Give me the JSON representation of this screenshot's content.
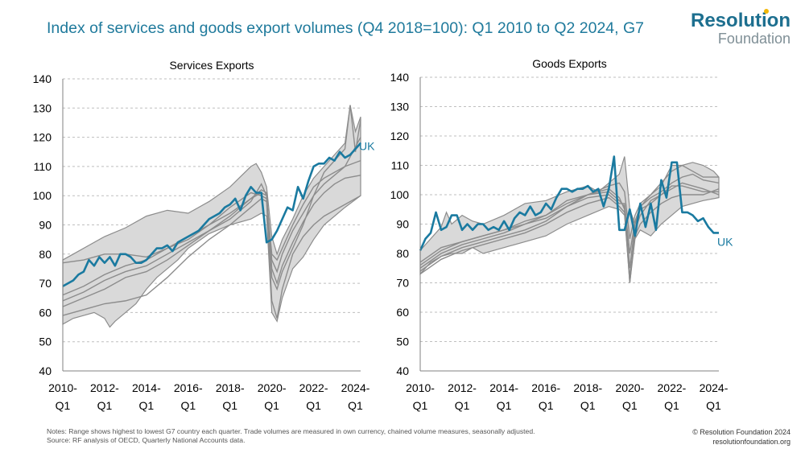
{
  "title": "Index of services and goods export volumes (Q4 2018=100): Q1 2010 to Q2 2024, G7",
  "logo": {
    "line1": "Resolution",
    "line2": "Foundation"
  },
  "notes": {
    "line1": "Notes: Range shows highest to lowest G7 country each quarter. Trade volumes are measured in own currency, chained volume measures, seasonally adjusted.",
    "line2": "Source: RF analysis of OECD, Quarterly National Accounts data."
  },
  "credit": {
    "line1": "© Resolution Foundation 2024",
    "line2": "resolutionfoundation.org"
  },
  "colors": {
    "uk": "#1a7aa0",
    "range": "#d9d9d9",
    "range_edge": "#8c8c8c",
    "country": "#8c8c8c",
    "grid": "#bfbfbf"
  },
  "chart_data": [
    {
      "type": "area",
      "title": "Services Exports",
      "ylim": [
        40,
        140
      ],
      "yticks": [
        40,
        50,
        60,
        70,
        80,
        90,
        100,
        110,
        120,
        130,
        140
      ],
      "x_tick_labels": [
        [
          "2010-",
          "Q1"
        ],
        [
          "2012-",
          "Q1"
        ],
        [
          "2014-",
          "Q1"
        ],
        [
          "2016-",
          "Q1"
        ],
        [
          "2018-",
          "Q1"
        ],
        [
          "2020-",
          "Q1"
        ],
        [
          "2022-",
          "Q1"
        ],
        [
          "2024-",
          "Q1"
        ]
      ],
      "x_tick_indices": [
        0,
        8,
        16,
        24,
        32,
        40,
        48,
        56
      ],
      "n_quarters": 58,
      "series_label": "UK",
      "uk_label_y": 117,
      "range_high": {
        "x": [
          0,
          2,
          5,
          8,
          12,
          16,
          20,
          24,
          28,
          32,
          36,
          37,
          38,
          39,
          40,
          41,
          42,
          44,
          46,
          48,
          50,
          52,
          54,
          55,
          56,
          57
        ],
        "y": [
          78,
          80,
          83,
          86,
          89,
          93,
          95,
          94,
          98,
          103,
          110,
          111,
          108,
          103,
          86,
          80,
          85,
          92,
          100,
          106,
          110,
          114,
          118,
          131,
          122,
          127
        ]
      },
      "range_low": {
        "x": [
          0,
          2,
          4,
          6,
          8,
          9,
          10,
          12,
          14,
          16,
          18,
          20,
          22,
          24,
          28,
          32,
          36,
          38,
          39,
          40,
          41,
          42,
          44,
          46,
          48,
          50,
          52,
          54,
          57
        ],
        "y": [
          56,
          58,
          59,
          60,
          58,
          55,
          57,
          60,
          63,
          68,
          72,
          75,
          78,
          82,
          87,
          90,
          92,
          94,
          93,
          60,
          57,
          65,
          75,
          79,
          85,
          90,
          93,
          96,
          100
        ]
      },
      "uk": {
        "x": [
          0,
          1,
          2,
          3,
          4,
          5,
          6,
          7,
          8,
          9,
          10,
          11,
          12,
          13,
          14,
          15,
          16,
          17,
          18,
          19,
          20,
          21,
          22,
          23,
          24,
          25,
          26,
          27,
          28,
          29,
          30,
          31,
          32,
          33,
          34,
          35,
          36,
          37,
          38,
          39,
          40,
          41,
          42,
          43,
          44,
          45,
          46,
          47,
          48,
          49,
          50,
          51,
          52,
          53,
          54,
          55,
          56,
          57
        ],
        "y": [
          69,
          70,
          71,
          73,
          74,
          78,
          76,
          79,
          77,
          79,
          76,
          80,
          80,
          79,
          77,
          77,
          78,
          80,
          82,
          82,
          83,
          81,
          84,
          85,
          86,
          87,
          88,
          90,
          92,
          93,
          94,
          96,
          97,
          99,
          95,
          100,
          103,
          101,
          101,
          84,
          85,
          88,
          92,
          96,
          95,
          103,
          99,
          105,
          110,
          111,
          111,
          113,
          112,
          115,
          113,
          114,
          116,
          118
        ]
      },
      "others": [
        {
          "x": [
            0,
            4,
            8,
            12,
            16,
            20,
            24,
            28,
            32,
            36,
            38,
            39,
            40,
            41,
            42,
            44,
            46,
            48,
            50,
            52,
            54,
            57
          ],
          "y": [
            77,
            78,
            80,
            80,
            79,
            82,
            85,
            90,
            96,
            101,
            100,
            99,
            80,
            78,
            82,
            90,
            97,
            103,
            106,
            108,
            110,
            112
          ]
        },
        {
          "x": [
            0,
            4,
            8,
            12,
            16,
            20,
            24,
            28,
            32,
            36,
            38,
            39,
            40,
            41,
            42,
            44,
            46,
            48,
            50,
            52,
            54,
            57
          ],
          "y": [
            66,
            69,
            73,
            76,
            78,
            82,
            86,
            90,
            94,
            99,
            101,
            100,
            78,
            74,
            80,
            88,
            94,
            100,
            104,
            107,
            110,
            120
          ]
        },
        {
          "x": [
            0,
            4,
            8,
            12,
            16,
            20,
            24,
            28,
            32,
            36,
            38,
            39,
            40,
            41,
            42,
            44,
            46,
            48,
            50,
            52,
            54,
            57
          ],
          "y": [
            64,
            67,
            71,
            74,
            76,
            80,
            84,
            88,
            93,
            99,
            102,
            101,
            75,
            70,
            76,
            84,
            91,
            97,
            101,
            104,
            106,
            107
          ]
        },
        {
          "x": [
            0,
            4,
            8,
            12,
            16,
            20,
            24,
            28,
            32,
            36,
            38,
            39,
            40,
            41,
            42,
            44,
            46,
            48,
            50,
            52,
            54,
            55,
            56,
            57
          ],
          "y": [
            62,
            65,
            68,
            72,
            74,
            78,
            83,
            88,
            92,
            98,
            104,
            100,
            72,
            68,
            74,
            82,
            90,
            100,
            108,
            112,
            116,
            131,
            115,
            126
          ]
        },
        {
          "x": [
            0,
            4,
            8,
            12,
            16,
            20,
            24,
            28,
            32,
            36,
            38,
            39,
            40,
            41,
            42,
            44,
            46,
            48,
            50,
            52,
            54,
            57
          ],
          "y": [
            59,
            61,
            63,
            64,
            66,
            72,
            79,
            85,
            90,
            96,
            99,
            98,
            64,
            58,
            68,
            80,
            86,
            90,
            93,
            95,
            97,
            100
          ]
        }
      ]
    },
    {
      "type": "area",
      "title": "Goods Exports",
      "ylim": [
        40,
        140
      ],
      "yticks": [
        40,
        50,
        60,
        70,
        80,
        90,
        100,
        110,
        120,
        130,
        140
      ],
      "x_tick_labels": [
        [
          "2010-",
          "Q1"
        ],
        [
          "2012-",
          "Q1"
        ],
        [
          "2014-",
          "Q1"
        ],
        [
          "2016-",
          "Q1"
        ],
        [
          "2018-",
          "Q1"
        ],
        [
          "2020-",
          "Q1"
        ],
        [
          "2022-",
          "Q1"
        ],
        [
          "2024-",
          "Q1"
        ]
      ],
      "x_tick_indices": [
        0,
        8,
        16,
        24,
        32,
        40,
        48,
        56
      ],
      "n_quarters": 58,
      "series_label": "UK",
      "uk_label_y": 84,
      "range_high": {
        "x": [
          0,
          2,
          4,
          5,
          6,
          8,
          10,
          12,
          16,
          20,
          24,
          28,
          32,
          34,
          36,
          38,
          39,
          40,
          41,
          42,
          44,
          46,
          48,
          50,
          52,
          54,
          55,
          56,
          57
        ],
        "y": [
          81,
          85,
          89,
          94,
          90,
          93,
          91,
          90,
          93,
          97,
          98,
          101,
          103,
          101,
          104,
          107,
          113,
          95,
          90,
          96,
          100,
          103,
          110,
          110,
          111,
          110,
          109,
          108,
          106
        ]
      },
      "range_low": {
        "x": [
          0,
          2,
          4,
          6,
          8,
          10,
          12,
          16,
          20,
          24,
          28,
          32,
          36,
          38,
          39,
          40,
          41,
          42,
          44,
          46,
          48,
          50,
          52,
          54,
          57
        ],
        "y": [
          73,
          77,
          79,
          80,
          80,
          82,
          80,
          82,
          84,
          86,
          90,
          93,
          96,
          95,
          93,
          70,
          85,
          88,
          86,
          90,
          93,
          96,
          97,
          98,
          99
        ]
      },
      "uk": {
        "x": [
          0,
          1,
          2,
          3,
          4,
          5,
          6,
          7,
          8,
          9,
          10,
          11,
          12,
          13,
          14,
          15,
          16,
          17,
          18,
          19,
          20,
          21,
          22,
          23,
          24,
          25,
          26,
          27,
          28,
          29,
          30,
          31,
          32,
          33,
          34,
          35,
          36,
          37,
          38,
          39,
          40,
          41,
          42,
          43,
          44,
          45,
          46,
          47,
          48,
          49,
          50,
          51,
          52,
          53,
          54,
          55,
          56,
          57
        ],
        "y": [
          81,
          85,
          87,
          94,
          88,
          89,
          93,
          93,
          88,
          90,
          88,
          90,
          90,
          88,
          89,
          88,
          91,
          88,
          92,
          94,
          93,
          96,
          93,
          94,
          97,
          95,
          99,
          102,
          102,
          101,
          102,
          102,
          103,
          101,
          102,
          96,
          102,
          113,
          88,
          88,
          95,
          86,
          97,
          89,
          97,
          88,
          105,
          99,
          111,
          111,
          94,
          94,
          93,
          91,
          92,
          89,
          87,
          87
        ]
      },
      "others": [
        {
          "x": [
            0,
            4,
            8,
            12,
            16,
            20,
            24,
            28,
            32,
            36,
            38,
            39,
            40,
            41,
            42,
            44,
            46,
            48,
            50,
            52,
            54,
            57
          ],
          "y": [
            75,
            80,
            83,
            85,
            87,
            90,
            92,
            96,
            100,
            102,
            99,
            95,
            70,
            88,
            93,
            98,
            100,
            103,
            103,
            102,
            101,
            101
          ]
        },
        {
          "x": [
            0,
            4,
            8,
            12,
            16,
            20,
            24,
            28,
            32,
            36,
            38,
            39,
            40,
            41,
            42,
            44,
            46,
            48,
            50,
            52,
            54,
            57
          ],
          "y": [
            77,
            82,
            84,
            86,
            88,
            90,
            93,
            97,
            100,
            101,
            98,
            96,
            75,
            90,
            95,
            97,
            100,
            102,
            104,
            103,
            102,
            100
          ]
        },
        {
          "x": [
            0,
            4,
            8,
            12,
            16,
            20,
            24,
            28,
            32,
            36,
            38,
            39,
            40,
            41,
            42,
            44,
            46,
            48,
            50,
            52,
            54,
            57
          ],
          "y": [
            74,
            79,
            82,
            84,
            86,
            88,
            91,
            96,
            99,
            100,
            97,
            97,
            80,
            91,
            96,
            99,
            101,
            104,
            106,
            107,
            105,
            104
          ]
        },
        {
          "x": [
            0,
            4,
            8,
            12,
            16,
            20,
            24,
            28,
            32,
            36,
            38,
            39,
            40,
            41,
            42,
            44,
            46,
            48,
            50,
            52,
            54,
            57
          ],
          "y": [
            76,
            81,
            84,
            86,
            88,
            91,
            93,
            98,
            100,
            103,
            104,
            101,
            85,
            93,
            97,
            100,
            104,
            108,
            110,
            108,
            106,
            106
          ]
        },
        {
          "x": [
            0,
            4,
            8,
            12,
            16,
            20,
            24,
            28,
            32,
            36,
            38,
            39,
            40,
            41,
            42,
            44,
            46,
            48,
            50,
            52,
            54,
            57
          ],
          "y": [
            73,
            78,
            81,
            83,
            85,
            87,
            90,
            94,
            97,
            99,
            96,
            94,
            72,
            86,
            90,
            94,
            97,
            99,
            100,
            100,
            100,
            102
          ]
        }
      ]
    }
  ]
}
